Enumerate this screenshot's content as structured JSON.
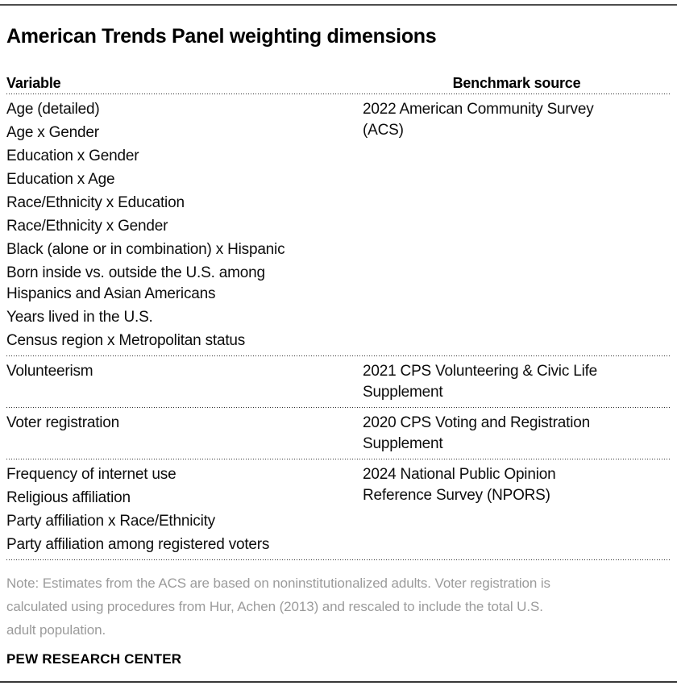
{
  "title": "American Trends Panel weighting dimensions",
  "chart_data": {
    "type": "table",
    "title": "American Trends Panel weighting dimensions",
    "columns": [
      "Variable",
      "Benchmark source"
    ],
    "sections": [
      {
        "variables": [
          "Age (detailed)",
          "Age x Gender",
          "Education x Gender",
          "Education x Age",
          "Race/Ethnicity x Education",
          "Race/Ethnicity x Gender",
          "Black (alone or in combination) x Hispanic",
          "Born inside vs. outside the U.S. among\nHispanics and Asian Americans",
          "Years lived in the U.S.",
          "Census region x Metropolitan status"
        ],
        "source": "2022 American Community Survey\n(ACS)"
      },
      {
        "variables": [
          "Volunteerism"
        ],
        "source": "2021 CPS Volunteering & Civic Life\nSupplement"
      },
      {
        "variables": [
          "Voter registration"
        ],
        "source": "2020 CPS Voting and Registration\nSupplement"
      },
      {
        "variables": [
          "Frequency of internet use",
          "Religious affiliation",
          "Party affiliation x Race/Ethnicity",
          "Party affiliation among registered voters"
        ],
        "source": "2024 National Public Opinion\nReference Survey (NPORS)"
      }
    ]
  },
  "note": "Note: Estimates from the ACS are based on noninstitutionalized adults. Voter registration is\ncalculated using procedures from Hur, Achen (2013) and rescaled to include the total U.S.\nadult population.",
  "footer": "PEW RESEARCH CENTER",
  "colors": {
    "rule_top": "#4e4e4e",
    "rule_bottom": "#383838",
    "dotted_divider": "#2e2e2e",
    "note_gray": "#9b9b9b",
    "text": "#0d0d0d"
  }
}
